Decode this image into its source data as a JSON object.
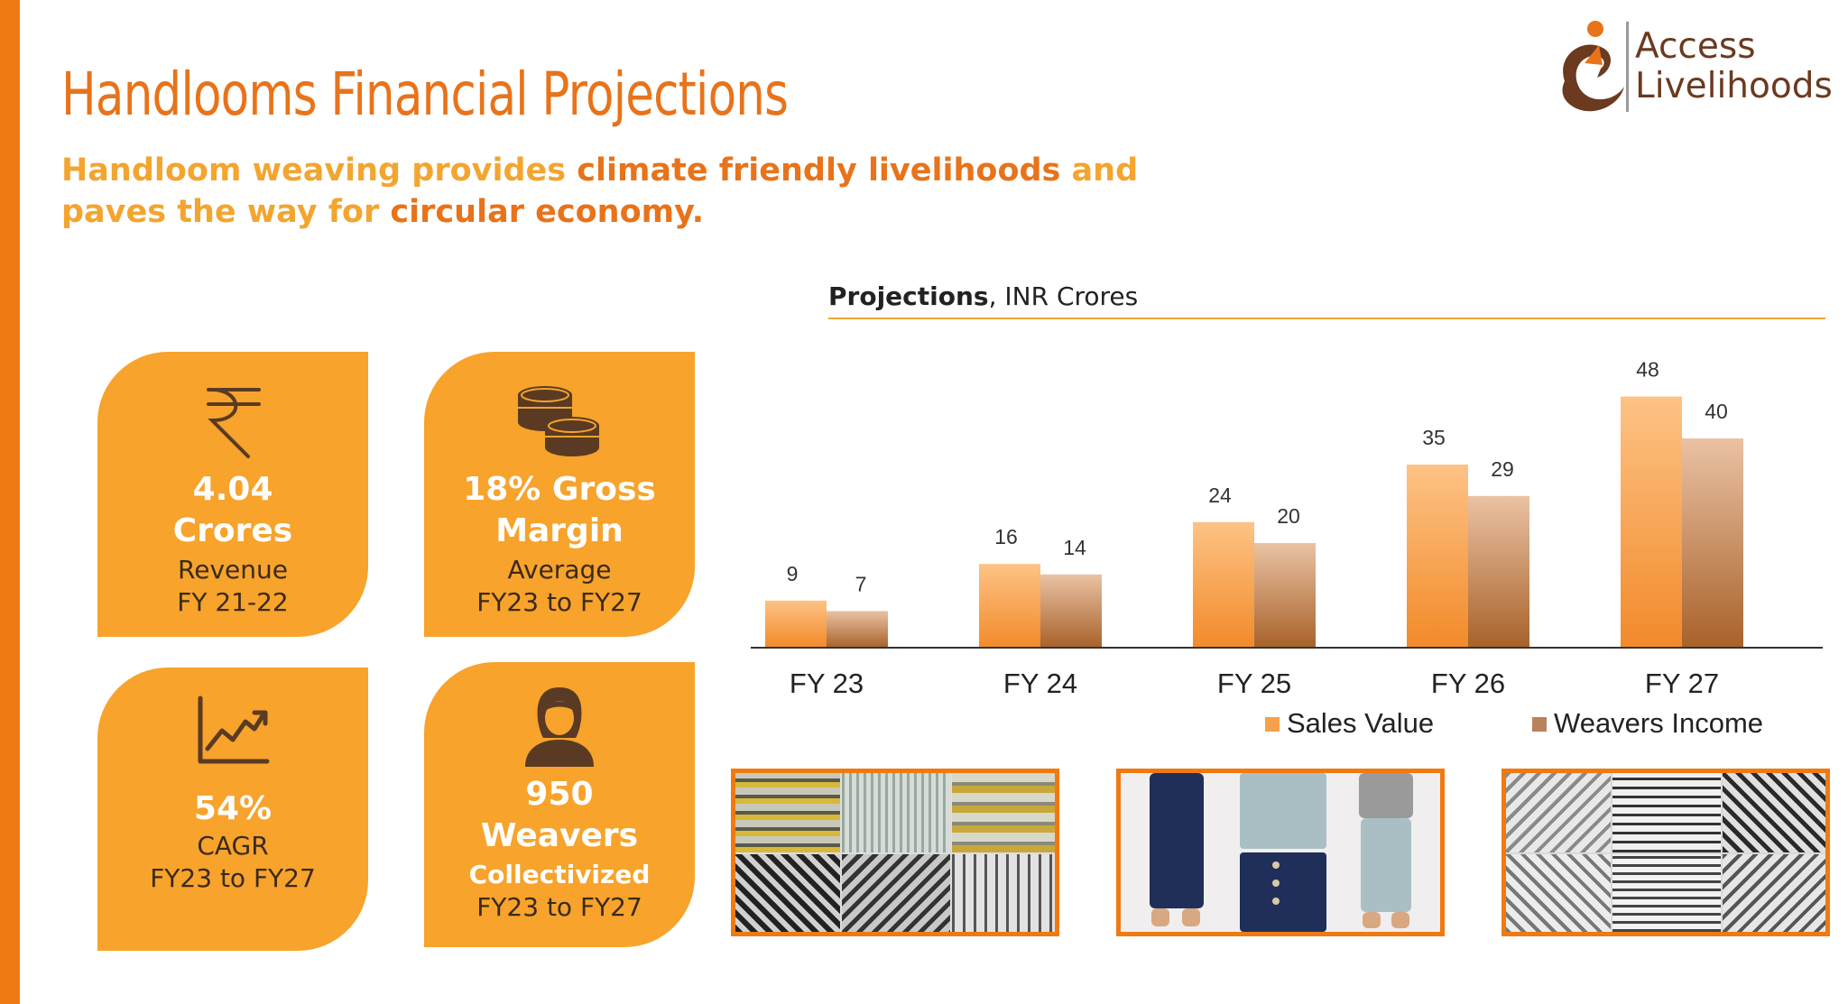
{
  "title": "Handlooms Financial Projections",
  "subtitle": {
    "part1": "Handloom weaving provides ",
    "part2": "climate friendly livelihoods",
    "part3": " and paves the way for ",
    "part4": "circular economy."
  },
  "logo": {
    "line1": "Access",
    "line2": "Livelihoods",
    "icon": "access-livelihoods-logo"
  },
  "cards": [
    {
      "icon": "rupee-icon",
      "big": "4.04 Crores",
      "line1": "Revenue",
      "line2": "FY 21-22"
    },
    {
      "icon": "coins-icon",
      "big": "18% Gross Margin",
      "line1": "Average",
      "line2": "FY23 to FY27"
    },
    {
      "icon": "growth-chart-icon",
      "big": "54%",
      "line1": "CAGR",
      "line2": "FY23 to FY27"
    },
    {
      "icon": "weaver-person-icon",
      "big": "950 Weavers",
      "line1": "Collectivized",
      "line2": "FY23 to FY27"
    }
  ],
  "chart_title": {
    "bold": "Projections",
    "rest": ", INR Crores"
  },
  "chart_data": {
    "type": "bar",
    "title": "Projections, INR Crores",
    "categories": [
      "FY 23",
      "FY 24",
      "FY 25",
      "FY 26",
      "FY 27"
    ],
    "series": [
      {
        "name": "Sales Value",
        "values": [
          9,
          16,
          24,
          35,
          48
        ],
        "color": "#f7a04a"
      },
      {
        "name": "Weavers Income",
        "values": [
          7,
          14,
          20,
          29,
          40
        ],
        "color": "#c58a5c"
      }
    ],
    "ylim": [
      0,
      50
    ],
    "grid": false,
    "legend": "bottom-right",
    "data_labels": true
  },
  "photos": [
    {
      "name": "handloom-fabric-samples-photo"
    },
    {
      "name": "handloom-trousers-photo"
    },
    {
      "name": "handloom-striped-fabric-photo"
    }
  ],
  "colors": {
    "accent": "#e8731a",
    "accent_light": "#f3a52f",
    "card": "#f7a32c",
    "brand_brown": "#6b3a1f"
  }
}
